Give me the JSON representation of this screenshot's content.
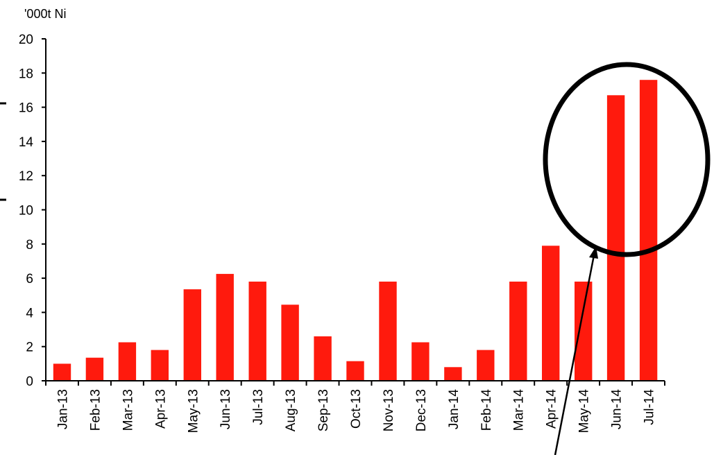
{
  "chart_data": {
    "type": "bar",
    "ylabel": "'000t Ni",
    "categories": [
      "Jan-13",
      "Feb-13",
      "Mar-13",
      "Apr-13",
      "May-13",
      "Jun-13",
      "Jul-13",
      "Aug-13",
      "Sep-13",
      "Oct-13",
      "Nov-13",
      "Dec-13",
      "Jan-14",
      "Feb-14",
      "Mar-14",
      "Apr-14",
      "May-14",
      "Jun-14",
      "Jul-14"
    ],
    "values": [
      1.0,
      1.35,
      2.25,
      1.8,
      5.35,
      6.25,
      5.8,
      4.45,
      2.6,
      1.15,
      5.8,
      2.25,
      0.8,
      1.8,
      5.8,
      7.9,
      5.8,
      16.7,
      17.6
    ],
    "ylim": [
      0,
      20
    ],
    "yticks": [
      "0",
      "2",
      "4",
      "6",
      "8",
      "10",
      "12",
      "14",
      "16",
      "18",
      "20"
    ],
    "grid": false,
    "bar_color": "#ff1a0d",
    "annotation": {
      "shape": "ellipse",
      "highlights": [
        "Jun-14",
        "Jul-14"
      ],
      "color": "#000000"
    }
  }
}
